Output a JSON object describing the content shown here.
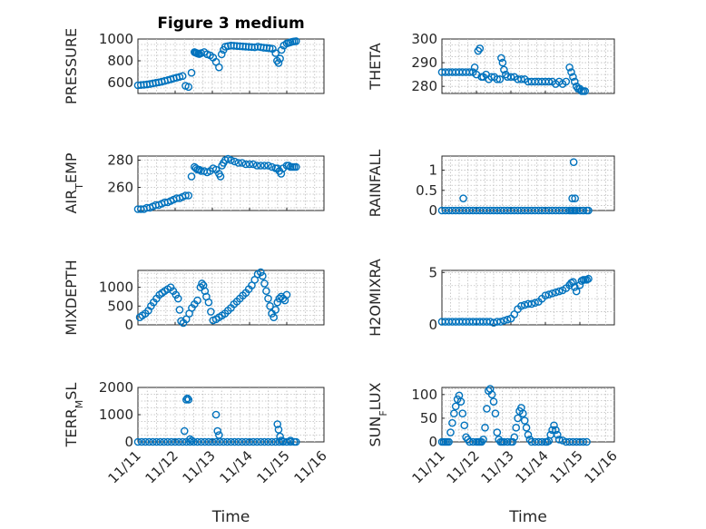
{
  "figure": {
    "title": "Figure 3 medium"
  },
  "chart_data": [
    {
      "type": "scatter",
      "title": "Figure 3 medium",
      "ylabel": "PRESSURE",
      "xlabel": "",
      "xlim": [
        0,
        5
      ],
      "ylim": [
        500,
        1000
      ],
      "yticks": [
        600,
        800,
        1000
      ],
      "xticks": [
        "11/11",
        "11/12",
        "11/13",
        "11/14",
        "11/15",
        "11/16"
      ],
      "show_xticklabels": false,
      "grid": true,
      "color": "#0072BD",
      "x": [
        0.0,
        0.08,
        0.16,
        0.24,
        0.32,
        0.4,
        0.48,
        0.56,
        0.64,
        0.72,
        0.8,
        0.88,
        0.96,
        1.04,
        1.12,
        1.2,
        1.28,
        1.36,
        1.44,
        1.52,
        1.55,
        1.58,
        1.62,
        1.65,
        1.7,
        1.78,
        1.86,
        1.94,
        2.02,
        2.1,
        2.18,
        2.25,
        2.3,
        2.35,
        2.42,
        2.5,
        2.58,
        2.66,
        2.74,
        2.82,
        2.9,
        2.98,
        3.06,
        3.14,
        3.22,
        3.3,
        3.38,
        3.46,
        3.54,
        3.62,
        3.7,
        3.74,
        3.78,
        3.82,
        3.86,
        3.92,
        4.0,
        4.05,
        4.1,
        4.15,
        4.2,
        4.25
      ],
      "y": [
        575,
        578,
        580,
        583,
        587,
        592,
        597,
        602,
        608,
        615,
        622,
        630,
        638,
        645,
        652,
        660,
        570,
        560,
        690,
        880,
        875,
        870,
        865,
        862,
        870,
        880,
        860,
        850,
        830,
        790,
        740,
        860,
        900,
        930,
        935,
        940,
        938,
        936,
        934,
        932,
        930,
        928,
        926,
        924,
        930,
        925,
        920,
        918,
        915,
        910,
        870,
        800,
        780,
        820,
        900,
        940,
        960,
        965,
        970,
        975,
        978,
        980
      ]
    },
    {
      "type": "scatter",
      "ylabel": "THETA",
      "xlabel": "",
      "xlim": [
        0,
        5
      ],
      "ylim": [
        277,
        300
      ],
      "yticks": [
        280,
        290,
        300
      ],
      "xticks": [
        "11/11",
        "11/12",
        "11/13",
        "11/14",
        "11/15",
        "11/16"
      ],
      "show_xticklabels": false,
      "grid": true,
      "color": "#0072BD",
      "x": [
        0.0,
        0.1,
        0.2,
        0.3,
        0.4,
        0.5,
        0.6,
        0.7,
        0.8,
        0.9,
        0.95,
        1.0,
        1.05,
        1.1,
        1.15,
        1.2,
        1.28,
        1.36,
        1.44,
        1.52,
        1.6,
        1.68,
        1.72,
        1.76,
        1.8,
        1.85,
        1.9,
        2.0,
        2.1,
        2.2,
        2.3,
        2.4,
        2.5,
        2.6,
        2.7,
        2.8,
        2.9,
        3.0,
        3.1,
        3.2,
        3.3,
        3.4,
        3.5,
        3.6,
        3.7,
        3.75,
        3.8,
        3.85,
        3.9,
        3.95,
        4.0,
        4.05,
        4.1,
        4.15
      ],
      "y": [
        286,
        286,
        286,
        286,
        286,
        286,
        286,
        286,
        286,
        286,
        288,
        285,
        295,
        296,
        284,
        284,
        285,
        283,
        284,
        284,
        283,
        283,
        292,
        290,
        287,
        285,
        284,
        284,
        284,
        283,
        283,
        283,
        282,
        282,
        282,
        282,
        282,
        282,
        282,
        282,
        281,
        282,
        281,
        282,
        288,
        286,
        284,
        282,
        280,
        279,
        279,
        278,
        278,
        278
      ]
    },
    {
      "type": "scatter",
      "ylabel": "AIR_TEMP",
      "xlabel": "",
      "xlim": [
        0,
        5
      ],
      "ylim": [
        243,
        283
      ],
      "yticks": [
        260,
        280
      ],
      "xticks": [
        "11/11",
        "11/12",
        "11/13",
        "11/14",
        "11/15",
        "11/16"
      ],
      "show_xticklabels": false,
      "grid": true,
      "color": "#0072BD",
      "x": [
        0.0,
        0.08,
        0.16,
        0.24,
        0.32,
        0.4,
        0.48,
        0.56,
        0.64,
        0.72,
        0.8,
        0.88,
        0.96,
        1.04,
        1.12,
        1.2,
        1.28,
        1.36,
        1.44,
        1.52,
        1.56,
        1.6,
        1.65,
        1.7,
        1.78,
        1.86,
        1.94,
        2.02,
        2.1,
        2.18,
        2.22,
        2.26,
        2.3,
        2.35,
        2.42,
        2.5,
        2.6,
        2.7,
        2.8,
        2.9,
        3.0,
        3.1,
        3.2,
        3.3,
        3.4,
        3.5,
        3.6,
        3.7,
        3.75,
        3.8,
        3.85,
        3.9,
        4.0,
        4.05,
        4.1,
        4.15,
        4.2,
        4.25
      ],
      "y": [
        244,
        244,
        244,
        245,
        245,
        246,
        247,
        247,
        248,
        249,
        249,
        250,
        251,
        252,
        252,
        253,
        254,
        254,
        268,
        275,
        274,
        273,
        273,
        272,
        272,
        271,
        272,
        274,
        273,
        270,
        268,
        276,
        278,
        280,
        281,
        280,
        279,
        278,
        278,
        277,
        277,
        277,
        276,
        276,
        276,
        276,
        275,
        274,
        274,
        272,
        270,
        274,
        276,
        276,
        275,
        275,
        275,
        275
      ]
    },
    {
      "type": "scatter",
      "ylabel": "RAINFALL",
      "xlabel": "",
      "xlim": [
        0,
        5
      ],
      "ylim": [
        0,
        1.35
      ],
      "yticks": [
        0,
        0.5,
        1
      ],
      "xticks": [
        "11/11",
        "11/12",
        "11/13",
        "11/14",
        "11/15",
        "11/16"
      ],
      "show_xticklabels": false,
      "grid": true,
      "color": "#0072BD",
      "x": [
        0.0,
        0.1,
        0.2,
        0.3,
        0.4,
        0.5,
        0.6,
        0.7,
        0.8,
        0.9,
        1.0,
        1.1,
        1.2,
        1.3,
        1.4,
        1.5,
        1.6,
        1.7,
        1.8,
        1.9,
        2.0,
        2.1,
        2.2,
        2.3,
        2.4,
        2.5,
        2.6,
        2.7,
        2.8,
        2.9,
        3.0,
        3.1,
        3.2,
        3.3,
        3.4,
        3.5,
        3.6,
        3.7,
        3.75,
        3.8,
        3.85,
        3.9,
        4.0,
        4.1,
        4.2,
        4.25,
        0.62,
        3.78,
        3.82,
        3.86
      ],
      "y": [
        0,
        0,
        0,
        0,
        0,
        0,
        0,
        0,
        0,
        0,
        0,
        0,
        0,
        0,
        0,
        0,
        0,
        0,
        0,
        0,
        0,
        0,
        0,
        0,
        0,
        0,
        0,
        0,
        0,
        0,
        0,
        0,
        0,
        0,
        0,
        0,
        0,
        0,
        0,
        0,
        0,
        0,
        0,
        0,
        0,
        0,
        0.3,
        0.3,
        1.2,
        0.3
      ]
    },
    {
      "type": "scatter",
      "ylabel": "MIXDEPTH",
      "xlabel": "",
      "xlim": [
        0,
        5
      ],
      "ylim": [
        0,
        1450
      ],
      "yticks": [
        0,
        500,
        1000
      ],
      "xticks": [
        "11/11",
        "11/12",
        "11/13",
        "11/14",
        "11/15",
        "11/16"
      ],
      "show_xticklabels": false,
      "grid": true,
      "color": "#0072BD",
      "x": [
        0.05,
        0.12,
        0.2,
        0.28,
        0.35,
        0.42,
        0.5,
        0.58,
        0.65,
        0.72,
        0.8,
        0.88,
        0.95,
        1.02,
        1.08,
        1.12,
        1.16,
        1.22,
        1.3,
        1.38,
        1.45,
        1.52,
        1.6,
        1.68,
        1.72,
        1.76,
        1.8,
        1.84,
        1.9,
        1.96,
        2.02,
        2.1,
        2.18,
        2.26,
        2.34,
        2.42,
        2.5,
        2.58,
        2.66,
        2.74,
        2.82,
        2.9,
        2.98,
        3.06,
        3.14,
        3.22,
        3.3,
        3.35,
        3.4,
        3.45,
        3.5,
        3.55,
        3.6,
        3.65,
        3.7,
        3.75,
        3.8,
        3.85,
        3.9,
        3.95,
        4.0
      ],
      "y": [
        200,
        250,
        300,
        380,
        500,
        600,
        700,
        800,
        850,
        900,
        950,
        1000,
        900,
        800,
        700,
        400,
        100,
        50,
        150,
        300,
        450,
        550,
        650,
        1000,
        1100,
        1050,
        900,
        750,
        600,
        350,
        120,
        150,
        200,
        250,
        300,
        380,
        450,
        550,
        620,
        700,
        780,
        850,
        950,
        1050,
        1200,
        1350,
        1400,
        1300,
        1100,
        900,
        700,
        500,
        300,
        200,
        400,
        600,
        700,
        750,
        700,
        650,
        800
      ]
    },
    {
      "type": "scatter",
      "ylabel": "H2OMIXRA",
      "xlabel": "",
      "xlim": [
        0,
        5
      ],
      "ylim": [
        0,
        5.2
      ],
      "yticks": [
        0,
        5
      ],
      "xticks": [
        "11/11",
        "11/12",
        "11/13",
        "11/14",
        "11/15",
        "11/16"
      ],
      "show_xticklabels": false,
      "grid": true,
      "color": "#0072BD",
      "x": [
        0.0,
        0.1,
        0.2,
        0.3,
        0.4,
        0.5,
        0.6,
        0.7,
        0.8,
        0.9,
        1.0,
        1.1,
        1.2,
        1.3,
        1.4,
        1.5,
        1.6,
        1.7,
        1.8,
        1.9,
        2.0,
        2.1,
        2.2,
        2.3,
        2.4,
        2.5,
        2.6,
        2.7,
        2.8,
        2.9,
        3.0,
        3.1,
        3.2,
        3.3,
        3.4,
        3.5,
        3.6,
        3.7,
        3.75,
        3.8,
        3.85,
        3.9,
        4.0,
        4.05,
        4.1,
        4.15,
        4.2,
        4.25
      ],
      "y": [
        0.3,
        0.3,
        0.3,
        0.3,
        0.3,
        0.3,
        0.3,
        0.3,
        0.3,
        0.3,
        0.3,
        0.3,
        0.3,
        0.3,
        0.3,
        0.2,
        0.3,
        0.3,
        0.4,
        0.5,
        0.6,
        1.0,
        1.5,
        1.8,
        1.9,
        2.0,
        2.0,
        2.1,
        2.2,
        2.5,
        2.8,
        2.9,
        3.0,
        3.1,
        3.2,
        3.3,
        3.5,
        3.8,
        4.0,
        4.1,
        3.6,
        3.2,
        3.8,
        4.2,
        4.3,
        4.3,
        4.3,
        4.4
      ]
    },
    {
      "type": "scatter",
      "ylabel": "TERR_MSL",
      "xlabel": "Time",
      "xlim": [
        0,
        5
      ],
      "ylim": [
        0,
        2000
      ],
      "yticks": [
        0,
        1000,
        2000
      ],
      "xticks": [
        "11/11",
        "11/12",
        "11/13",
        "11/14",
        "11/15",
        "11/16"
      ],
      "show_xticklabels": true,
      "grid": true,
      "color": "#0072BD",
      "x": [
        0.0,
        0.1,
        0.2,
        0.3,
        0.4,
        0.5,
        0.6,
        0.7,
        0.8,
        0.9,
        1.0,
        1.1,
        1.2,
        1.3,
        1.4,
        1.5,
        1.6,
        1.7,
        1.8,
        1.9,
        2.0,
        2.1,
        2.2,
        2.3,
        2.4,
        2.5,
        2.6,
        2.7,
        2.8,
        2.9,
        3.0,
        3.1,
        3.2,
        3.3,
        3.4,
        3.5,
        3.6,
        3.7,
        3.8,
        3.9,
        4.0,
        4.1,
        4.2,
        4.25,
        1.25,
        1.3,
        1.33,
        1.36,
        1.4,
        1.45,
        2.1,
        2.14,
        2.18,
        3.75,
        3.78,
        3.82,
        3.85,
        3.9,
        4.1
      ],
      "y": [
        0,
        0,
        0,
        0,
        0,
        0,
        0,
        0,
        0,
        0,
        0,
        0,
        0,
        0,
        0,
        0,
        0,
        0,
        0,
        0,
        0,
        0,
        0,
        0,
        0,
        0,
        0,
        0,
        0,
        0,
        0,
        0,
        0,
        0,
        0,
        0,
        0,
        0,
        0,
        0,
        0,
        0,
        0,
        0,
        400,
        1550,
        1600,
        1550,
        100,
        50,
        1000,
        400,
        250,
        650,
        450,
        200,
        50,
        20,
        50
      ]
    },
    {
      "type": "scatter",
      "ylabel": "SUN_FLUX",
      "xlabel": "Time",
      "xlim": [
        0,
        5
      ],
      "ylim": [
        0,
        115
      ],
      "yticks": [
        0,
        50,
        100
      ],
      "xticks": [
        "11/11",
        "11/12",
        "11/13",
        "11/14",
        "11/15",
        "11/16"
      ],
      "show_xticklabels": true,
      "grid": true,
      "color": "#0072BD",
      "x": [
        0.0,
        0.05,
        0.1,
        0.15,
        0.2,
        0.25,
        0.3,
        0.35,
        0.4,
        0.45,
        0.5,
        0.55,
        0.6,
        0.65,
        0.7,
        0.75,
        0.8,
        0.9,
        1.0,
        1.05,
        1.1,
        1.15,
        1.2,
        1.25,
        1.3,
        1.35,
        1.4,
        1.45,
        1.5,
        1.55,
        1.6,
        1.65,
        1.7,
        1.75,
        1.8,
        1.9,
        2.0,
        2.05,
        2.1,
        2.15,
        2.2,
        2.25,
        2.3,
        2.35,
        2.4,
        2.45,
        2.5,
        2.55,
        2.6,
        2.7,
        2.8,
        2.9,
        3.0,
        3.05,
        3.1,
        3.15,
        3.2,
        3.25,
        3.3,
        3.35,
        3.4,
        3.5,
        3.6,
        3.7,
        3.8,
        3.9,
        4.0,
        4.1,
        4.2
      ],
      "y": [
        0,
        0,
        0,
        0,
        0,
        20,
        40,
        60,
        75,
        90,
        98,
        85,
        60,
        35,
        10,
        5,
        0,
        0,
        0,
        0,
        0,
        0,
        5,
        30,
        70,
        108,
        112,
        100,
        85,
        60,
        20,
        5,
        0,
        0,
        0,
        0,
        0,
        0,
        10,
        30,
        50,
        65,
        72,
        60,
        45,
        30,
        15,
        5,
        0,
        0,
        0,
        0,
        0,
        0,
        2,
        15,
        25,
        35,
        25,
        15,
        5,
        3,
        0,
        0,
        0,
        0,
        0,
        0,
        0
      ]
    }
  ]
}
